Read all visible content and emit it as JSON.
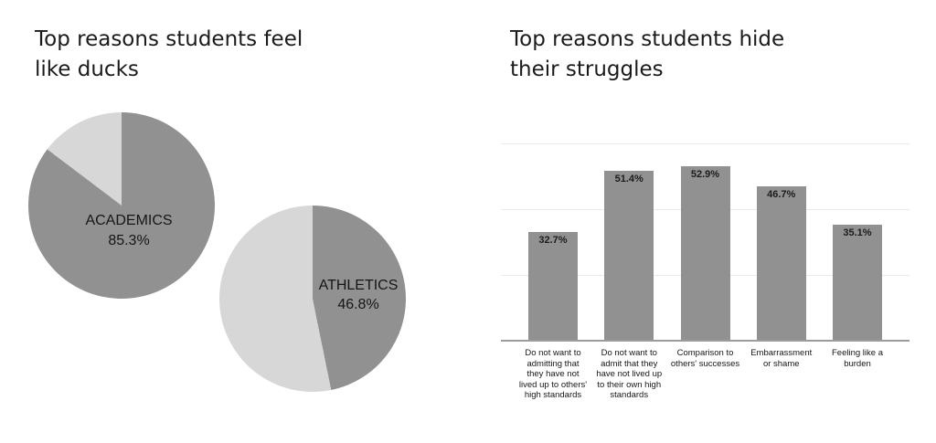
{
  "page": {
    "background": "#ffffff"
  },
  "chart_data": [
    {
      "type": "pie",
      "title": "Top reasons students feel like ducks",
      "title_display": "Top reasons students feel\nlike ducks",
      "unit": "%",
      "colors": {
        "slice": "#919191",
        "remainder": "#d7d7d7"
      },
      "legend": "none",
      "pies": [
        {
          "name": "ACADEMICS",
          "value": 85.3,
          "display_label": "ACADEMICS\n85.3%",
          "slices": [
            {
              "label": "ACADEMICS",
              "value": 85.3
            },
            {
              "label": "remainder",
              "value": 14.7
            }
          ]
        },
        {
          "name": "ATHLETICS",
          "value": 46.8,
          "display_label": "ATHLETICS\n46.8%",
          "slices": [
            {
              "label": "ATHLETICS",
              "value": 46.8
            },
            {
              "label": "remainder",
              "value": 53.2
            }
          ]
        }
      ]
    },
    {
      "type": "bar",
      "title": "Top reasons students hide their struggles",
      "title_display": "Top reasons students hide\ntheir struggles",
      "categories": [
        "Do not want to\nadmitting that\nthey have not\nlived up to others'\nhigh standards",
        "Do not want to\nadmit that they\nhave not lived up\nto their own high\nstandards",
        "Comparison to\nothers' successes",
        "Embarrassment\nor shame",
        "Feeling like a\nburden"
      ],
      "values": [
        32.7,
        51.4,
        52.9,
        46.7,
        35.1
      ],
      "value_labels": [
        "32.7%",
        "51.4%",
        "52.9%",
        "46.7%",
        "35.1%"
      ],
      "xlabel": "",
      "ylabel": "",
      "ylim": [
        0,
        60
      ],
      "grid_step": 20,
      "grid": true,
      "legend": "none",
      "bar_color": "#919191",
      "gridline_color": "#e9e9e9",
      "axis_color": "#9b9b9b"
    }
  ]
}
